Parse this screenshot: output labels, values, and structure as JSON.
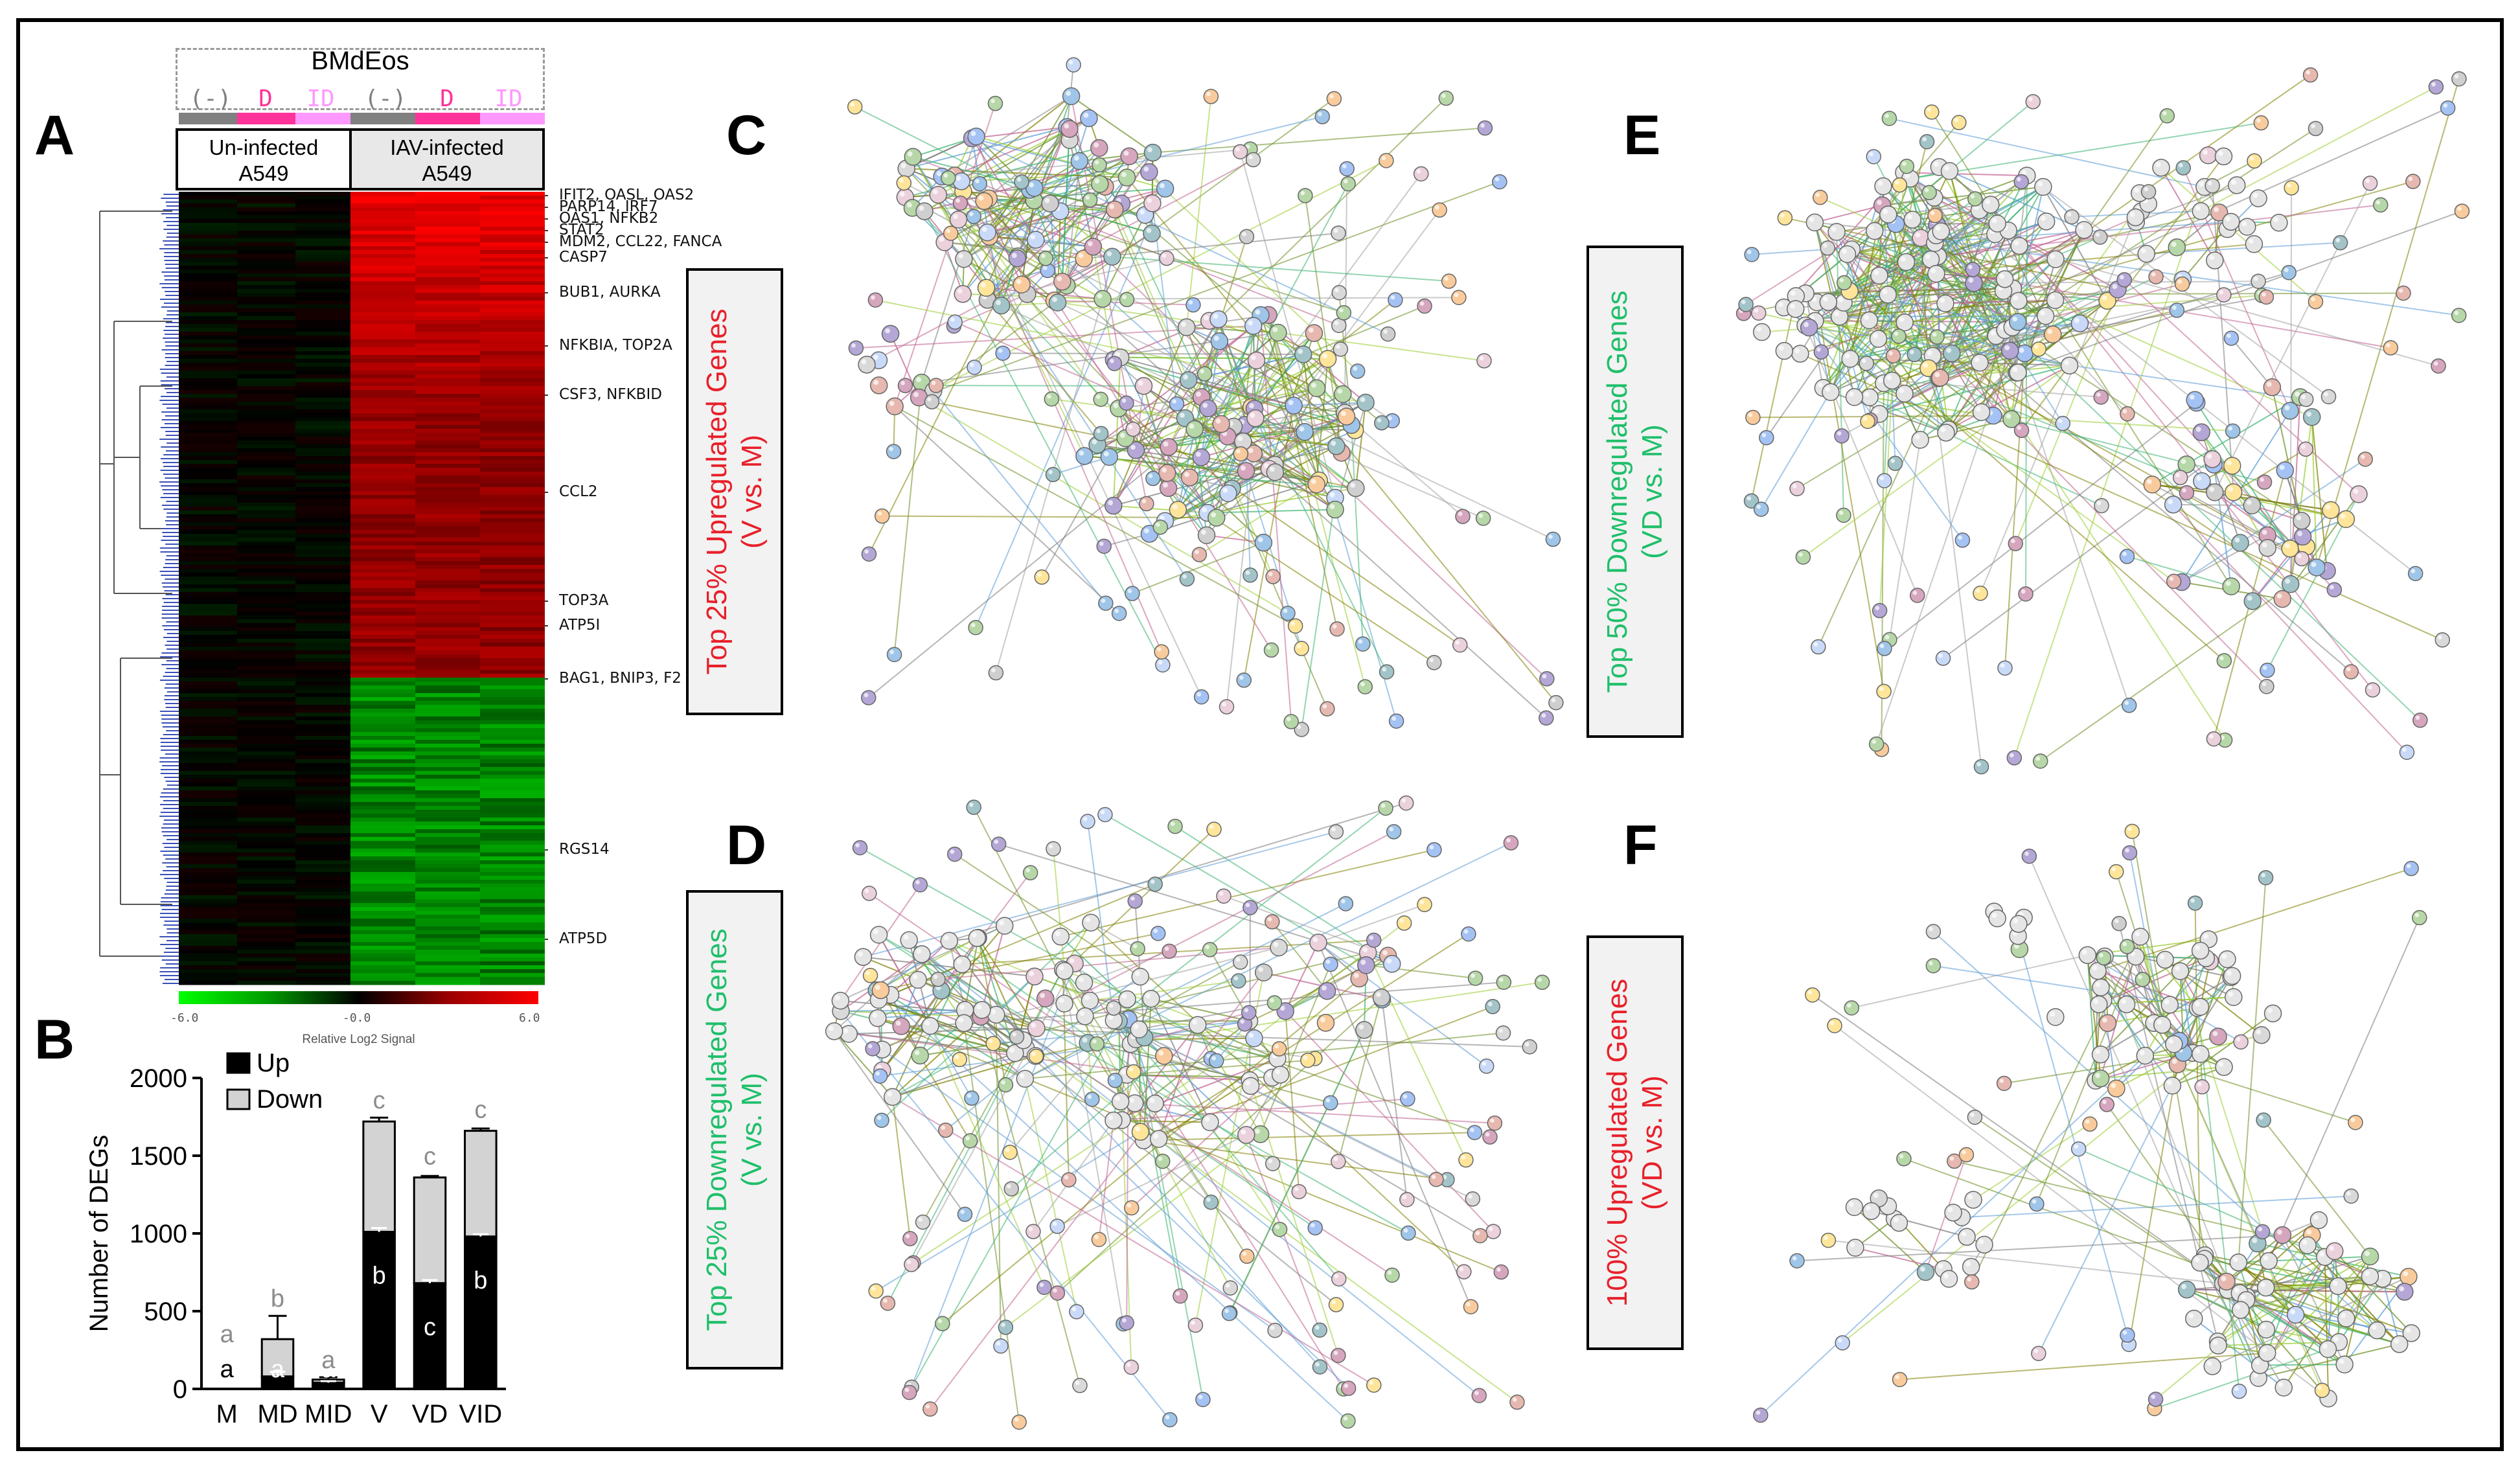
{
  "panels": {
    "a": "A",
    "b": "B",
    "c": "C",
    "d": "D",
    "e": "E",
    "f": "F"
  },
  "heatmap": {
    "bmdeos_title": "BMdEos",
    "treatments": [
      "(-)",
      "D",
      "ID",
      "(-)",
      "D",
      "ID"
    ],
    "treatment_colors": [
      "#808080",
      "#ff3399",
      "#ff99ff",
      "#808080",
      "#ff3399",
      "#ff99ff"
    ],
    "group_uninfected": [
      "Un-infected",
      "A549"
    ],
    "group_infected": [
      "IAV-infected",
      "A549"
    ],
    "gene_labels": [
      "IFIT2, OASL, OAS2",
      "PARP14, IRF7",
      "OAS1, NFKB2",
      "STAT2",
      "MDM2, CCL22, FANCA",
      "CASP7",
      "BUB1, AURKA",
      "NFKBIA, TOP2A",
      "CSF3, NFKBID",
      "CCL2",
      "TOP3A",
      "ATP5I",
      "BAG1, BNIP3, F2",
      "RGS14",
      "ATP5D"
    ],
    "scale_ticks": [
      "-6.0",
      "-0.0",
      "6.0"
    ],
    "scale_title": "Relative Log2 Signal",
    "scale_colors": [
      "#00ff00",
      "#000000",
      "#ff0000"
    ]
  },
  "chart_data": {
    "type": "bar",
    "stacked": true,
    "categories": [
      "M",
      "MD",
      "MID",
      "V",
      "VD",
      "VID"
    ],
    "series": [
      {
        "name": "Up",
        "color": "#000000",
        "values": [
          0,
          80,
          40,
          1010,
          680,
          980
        ],
        "errors": [
          0,
          30,
          10,
          25,
          20,
          15
        ]
      },
      {
        "name": "Down",
        "color": "#d3d3d3",
        "values": [
          0,
          240,
          20,
          710,
          680,
          680
        ],
        "errors": [
          0,
          150,
          15,
          25,
          10,
          15
        ]
      }
    ],
    "ylabel": "Number of DEGs",
    "ylim": [
      0,
      2000
    ],
    "yticks": [
      0,
      500,
      1000,
      1500,
      2000
    ],
    "legend_position": "top-left",
    "annotations_up": [
      "a",
      "a",
      "a",
      "b",
      "c",
      "b"
    ],
    "annotations_down": [
      "a",
      "b",
      "a",
      "c",
      "c",
      "c"
    ],
    "annotation_colors": {
      "up_dark": "#000000",
      "up_on_bar": "#ffffff",
      "down": "#8c8c8c"
    }
  },
  "networks": {
    "c": {
      "line1": "Top 25% Upregulated Genes",
      "line2": "(V vs. M)",
      "color": "#e8202a"
    },
    "d": {
      "line1": "Top 25% Downregulated Genes",
      "line2": "(V vs. M)",
      "color": "#1fbf6a"
    },
    "e": {
      "line1": "Top 50% Downregulated Genes",
      "line2": "(VD vs. M)",
      "color": "#1fbf6a"
    },
    "f": {
      "line1": "100% Upregulated Genes",
      "line2": "(VD vs. M)",
      "color": "#e8202a"
    }
  }
}
